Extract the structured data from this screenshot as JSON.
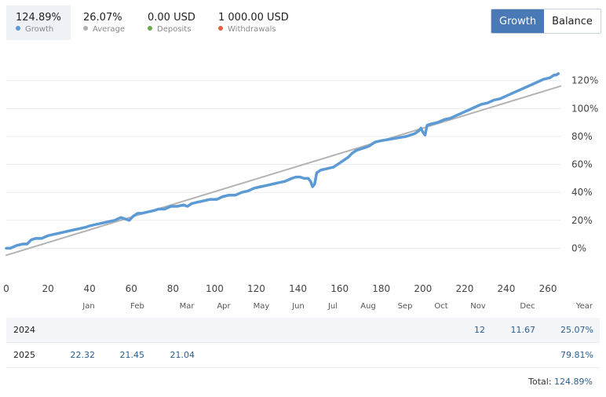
{
  "stats": [
    {
      "value": "124.89%",
      "label": "Growth",
      "color": "#5b9ad5"
    },
    {
      "value": "26.07%",
      "label": "Average",
      "color": "#b0b0b0"
    },
    {
      "value": "0.00 USD",
      "label": "Deposits",
      "color": "#6aa84f"
    },
    {
      "value": "1 000.00 USD",
      "label": "Withdrawals",
      "color": "#e06040"
    }
  ],
  "toggle": {
    "growth": "Growth",
    "balance": "Balance"
  },
  "chart_data": {
    "type": "line",
    "x_ticks": [
      0,
      20,
      40,
      60,
      80,
      100,
      120,
      140,
      160,
      180,
      200,
      220,
      240,
      260
    ],
    "y_ticks": [
      "0%",
      "20%",
      "40%",
      "60%",
      "80%",
      "100%",
      "120%"
    ],
    "xlim": [
      0,
      266
    ],
    "ylim": [
      -20,
      135
    ],
    "grid": true,
    "series": [
      {
        "color": "#5b9ad5",
        "x": [
          0,
          2,
          5,
          8,
          10,
          12,
          14,
          17,
          20,
          23,
          26,
          29,
          32,
          35,
          38,
          40,
          43,
          46,
          49,
          52,
          55,
          57,
          59,
          61,
          63,
          65,
          68,
          71,
          73,
          76,
          79,
          82,
          85,
          87,
          89,
          92,
          95,
          98,
          101,
          104,
          107,
          110,
          113,
          116,
          119,
          122,
          125,
          128,
          131,
          134,
          137,
          139,
          141,
          143,
          145,
          146,
          147,
          148,
          149,
          151,
          154,
          157,
          160,
          162,
          164,
          166,
          168,
          170,
          172,
          174,
          177,
          180,
          184,
          188,
          192,
          196,
          198,
          199,
          200,
          201,
          202,
          204,
          207,
          210,
          213,
          216,
          219,
          222,
          225,
          228,
          231,
          234,
          237,
          240,
          243,
          246,
          249,
          252,
          255,
          258,
          261,
          263,
          264,
          265
        ],
        "y": [
          0,
          0,
          2,
          3,
          3,
          6,
          7,
          7,
          9,
          10,
          11,
          12,
          13,
          14,
          15,
          16,
          17,
          18,
          19,
          20,
          22,
          21,
          20,
          23,
          25,
          25,
          26,
          27,
          28,
          28,
          30,
          30,
          31,
          30,
          32,
          33,
          34,
          35,
          35,
          37,
          38,
          38,
          40,
          41,
          43,
          44,
          45,
          46,
          47,
          48,
          50,
          51,
          51,
          50,
          50,
          48,
          44,
          46,
          54,
          56,
          57,
          58,
          61,
          63,
          65,
          68,
          70,
          71,
          72,
          73,
          76,
          77,
          78,
          79,
          80,
          82,
          84,
          86,
          83,
          81,
          88,
          89,
          90,
          92,
          93,
          95,
          97,
          99,
          101,
          103,
          104,
          106,
          107,
          109,
          111,
          113,
          115,
          117,
          119,
          121,
          122,
          124,
          124,
          125
        ]
      },
      {
        "color": "#b3b3b3",
        "x": [
          0,
          266
        ],
        "y": [
          -5,
          116
        ]
      }
    ]
  },
  "months": [
    "Jan",
    "Feb",
    "Mar",
    "Apr",
    "May",
    "Jun",
    "Jul",
    "Aug",
    "Sep",
    "Oct",
    "Nov",
    "Dec",
    "Year"
  ],
  "table": [
    {
      "year": "2024",
      "months": [
        "",
        "",
        "",
        "",
        "",
        "",
        "",
        "",
        "",
        "",
        "12",
        "11.67"
      ],
      "total": "25.07%"
    },
    {
      "year": "2025",
      "months": [
        "22.32",
        "21.45",
        "21.04",
        "",
        "",
        "",
        "",
        "",
        "",
        "",
        "",
        ""
      ],
      "total": "79.81%"
    }
  ],
  "total": {
    "label": "Total:",
    "value": "124.89%"
  }
}
